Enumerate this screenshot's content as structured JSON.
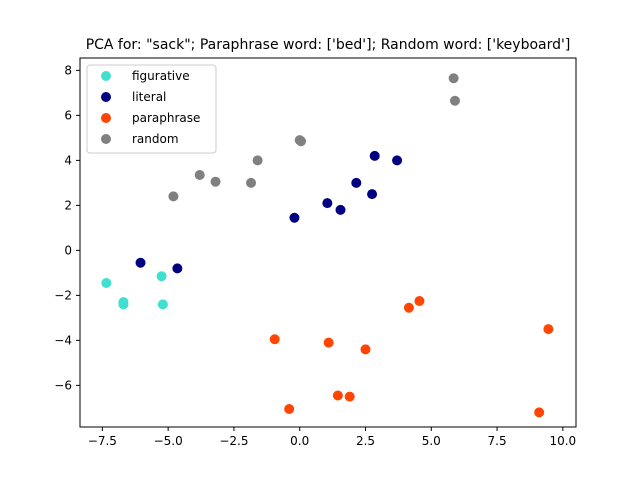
{
  "chart_data": {
    "type": "scatter",
    "title": "PCA for: \"sack\"; Paraphrase word: ['bed']; Random word: ['keyboard']",
    "xlabel": "",
    "ylabel": "",
    "xlim": [
      -8.35,
      10.5
    ],
    "ylim": [
      -7.85,
      8.55
    ],
    "xticks": [
      -7.5,
      -5.0,
      -2.5,
      0.0,
      2.5,
      5.0,
      7.5,
      10.0
    ],
    "xtick_labels": [
      "−7.5",
      "−5.0",
      "−2.5",
      "0.0",
      "2.5",
      "5.0",
      "7.5",
      "10.0"
    ],
    "yticks": [
      -6,
      -4,
      -2,
      0,
      2,
      4,
      6,
      8
    ],
    "ytick_labels": [
      "−6",
      "−4",
      "−2",
      "0",
      "2",
      "4",
      "6",
      "8"
    ],
    "grid": false,
    "legend_position": "top-left",
    "series": [
      {
        "name": "figurative",
        "color": "#40e0d0",
        "points": [
          [
            -7.35,
            -1.45
          ],
          [
            -6.7,
            -2.3
          ],
          [
            -6.7,
            -2.4
          ],
          [
            -5.25,
            -1.15
          ],
          [
            -5.2,
            -2.4
          ]
        ]
      },
      {
        "name": "literal",
        "color": "#000080",
        "points": [
          [
            -6.05,
            -0.55
          ],
          [
            -4.65,
            -0.8
          ],
          [
            -0.2,
            1.45
          ],
          [
            1.05,
            2.1
          ],
          [
            1.55,
            1.8
          ],
          [
            2.15,
            3.0
          ],
          [
            2.75,
            2.5
          ],
          [
            2.85,
            4.2
          ],
          [
            3.7,
            4.0
          ]
        ]
      },
      {
        "name": "paraphrase",
        "color": "#ff4500",
        "points": [
          [
            -0.95,
            -3.95
          ],
          [
            -0.4,
            -7.05
          ],
          [
            1.1,
            -4.1
          ],
          [
            1.45,
            -6.45
          ],
          [
            1.9,
            -6.5
          ],
          [
            2.5,
            -4.4
          ],
          [
            4.15,
            -2.55
          ],
          [
            4.55,
            -2.25
          ],
          [
            9.1,
            -7.2
          ],
          [
            9.45,
            -3.5
          ]
        ]
      },
      {
        "name": "random",
        "color": "#808080",
        "points": [
          [
            -4.8,
            2.4
          ],
          [
            -3.8,
            3.35
          ],
          [
            -3.2,
            3.05
          ],
          [
            -1.85,
            3.0
          ],
          [
            -1.6,
            4.0
          ],
          [
            0.0,
            4.9
          ],
          [
            0.05,
            4.85
          ],
          [
            5.85,
            7.65
          ],
          [
            5.9,
            6.65
          ]
        ]
      }
    ]
  }
}
